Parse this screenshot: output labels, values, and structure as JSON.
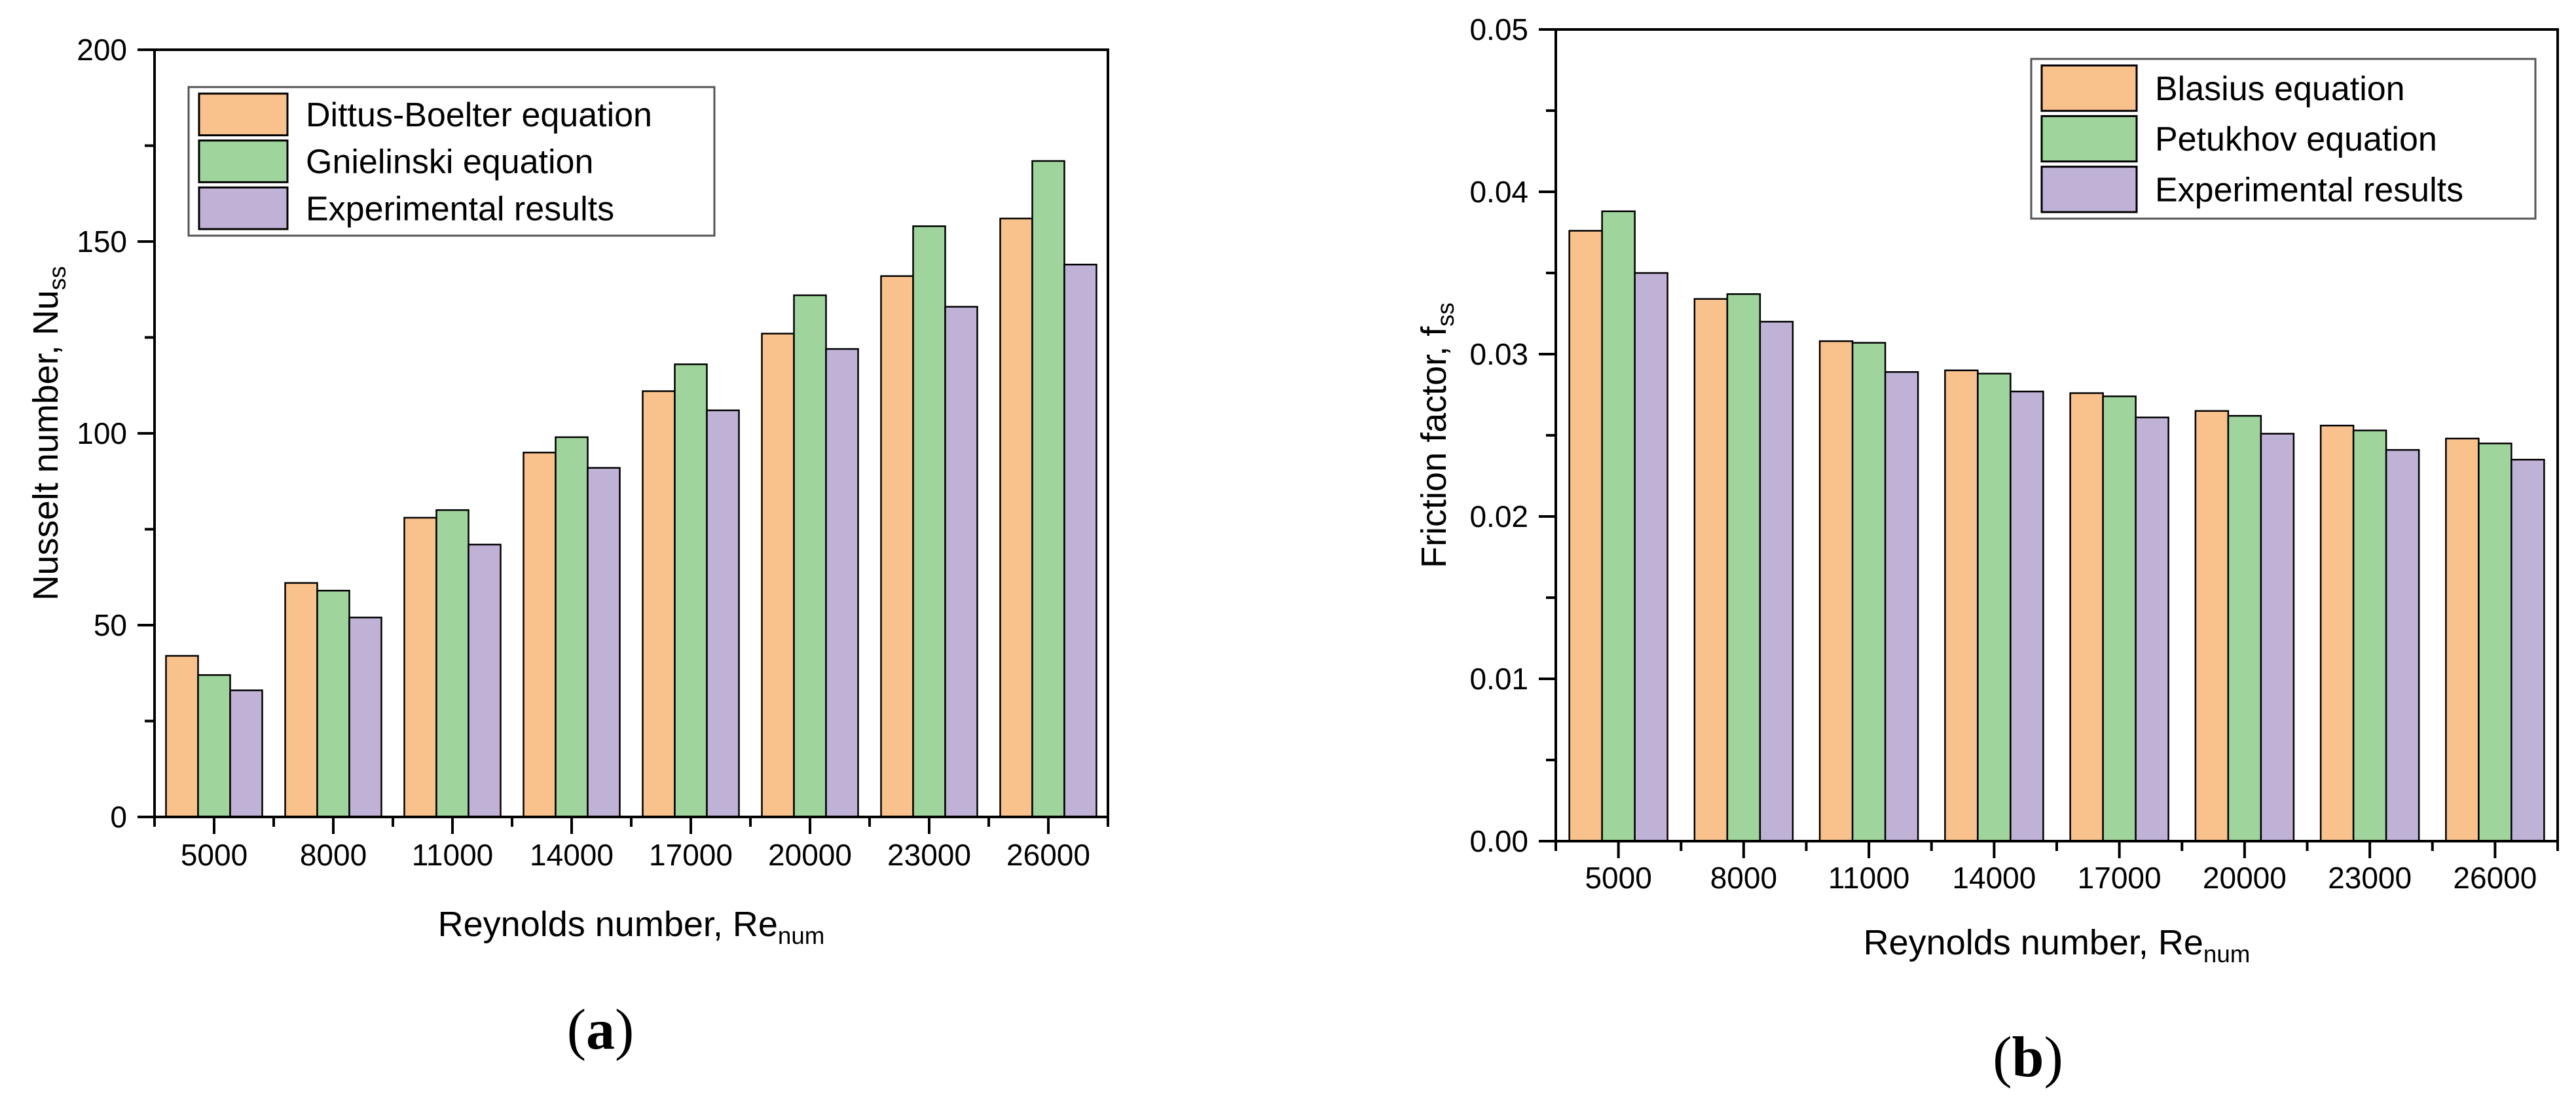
{
  "figure": {
    "background": "#ffffff",
    "axis_color": "#000000",
    "captions": [
      {
        "open": "(",
        "letter": "a",
        "close": ")"
      },
      {
        "open": "(",
        "letter": "b",
        "close": ")"
      }
    ]
  },
  "chart_data": [
    {
      "type": "bar",
      "panel": "a",
      "title": "",
      "xlabel": "Reynolds number, Re",
      "xlabel_sub": "num",
      "ylabel": "Nusselt number, Nu",
      "ylabel_sub": "ss",
      "categories": [
        "5000",
        "8000",
        "11000",
        "14000",
        "17000",
        "20000",
        "23000",
        "26000"
      ],
      "series": [
        {
          "name": "Dittus-Boelter equation",
          "color": "#F9C28D",
          "values": [
            42,
            61,
            78,
            95,
            111,
            126,
            141,
            156
          ]
        },
        {
          "name": "Gnielinski equation",
          "color": "#9FD59C",
          "values": [
            37,
            59,
            80,
            99,
            118,
            136,
            154,
            171
          ]
        },
        {
          "name": "Experimental results",
          "color": "#BFB2D6",
          "values": [
            33,
            52,
            71,
            91,
            106,
            122,
            133,
            144
          ]
        }
      ],
      "ylim": [
        0,
        200
      ],
      "ytick_step": 50,
      "yminor_step": 25,
      "ytick_decimals": 0,
      "legend_position": "top-left",
      "grid": false,
      "bar_border_color": "#000000"
    },
    {
      "type": "bar",
      "panel": "b",
      "title": "",
      "xlabel": "Reynolds number, Re",
      "xlabel_sub": "num",
      "ylabel": "Friction factor, f",
      "ylabel_sub": "ss",
      "categories": [
        "5000",
        "8000",
        "11000",
        "14000",
        "17000",
        "20000",
        "23000",
        "26000"
      ],
      "series": [
        {
          "name": "Blasius equation",
          "color": "#F9C28D",
          "values": [
            0.0376,
            0.0334,
            0.0308,
            0.029,
            0.0276,
            0.0265,
            0.0256,
            0.0248
          ]
        },
        {
          "name": "Petukhov equation",
          "color": "#9FD59C",
          "values": [
            0.0388,
            0.0337,
            0.0307,
            0.0288,
            0.0274,
            0.0262,
            0.0253,
            0.0245
          ]
        },
        {
          "name": "Experimental results",
          "color": "#BFB2D6",
          "values": [
            0.035,
            0.032,
            0.0289,
            0.0277,
            0.0261,
            0.0251,
            0.0241,
            0.0235
          ]
        }
      ],
      "ylim": [
        0,
        0.05
      ],
      "ytick_step": 0.01,
      "yminor_step": 0.005,
      "ytick_decimals": 2,
      "legend_position": "top-right",
      "grid": false,
      "bar_border_color": "#000000"
    }
  ]
}
